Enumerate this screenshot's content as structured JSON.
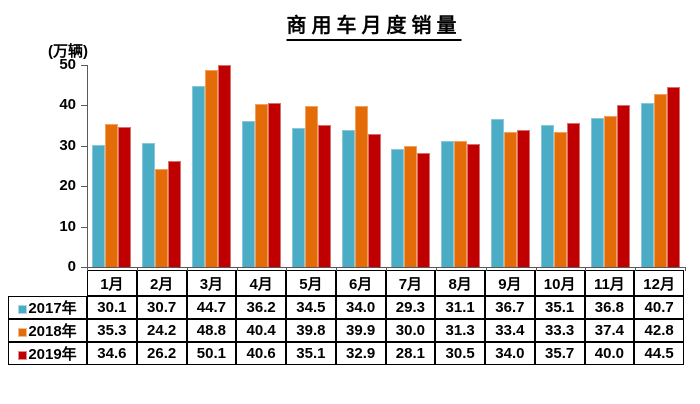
{
  "chart_data": {
    "type": "bar",
    "title": "商用车月度销量",
    "ylabel": "(万辆)",
    "xlabel": "",
    "categories": [
      "1月",
      "2月",
      "3月",
      "4月",
      "5月",
      "6月",
      "7月",
      "8月",
      "9月",
      "10月",
      "11月",
      "12月"
    ],
    "series": [
      {
        "name": "2017年",
        "color": "#4BACC6",
        "border_color": "#8CC7D9",
        "values": [
          30.1,
          30.7,
          44.7,
          36.2,
          34.5,
          34.0,
          29.3,
          31.1,
          36.7,
          35.1,
          36.8,
          40.7
        ]
      },
      {
        "name": "2018年",
        "color": "#E36C09",
        "border_color": "#F2A15B",
        "values": [
          35.3,
          24.2,
          48.8,
          40.4,
          39.8,
          39.9,
          30.0,
          31.3,
          33.4,
          33.3,
          37.4,
          42.8
        ]
      },
      {
        "name": "2019年",
        "color": "#C00000",
        "border_color": "#D97070",
        "values": [
          34.6,
          26.2,
          50.1,
          40.6,
          35.1,
          32.9,
          28.1,
          30.5,
          34.0,
          35.7,
          40.0,
          44.5
        ]
      }
    ],
    "ylim": [
      0,
      50
    ],
    "yticks": [
      0,
      10,
      20,
      30,
      40,
      50
    ],
    "grid": false,
    "value_decimals": 1,
    "legend_position": "table-left",
    "axis_color": "#595959"
  }
}
